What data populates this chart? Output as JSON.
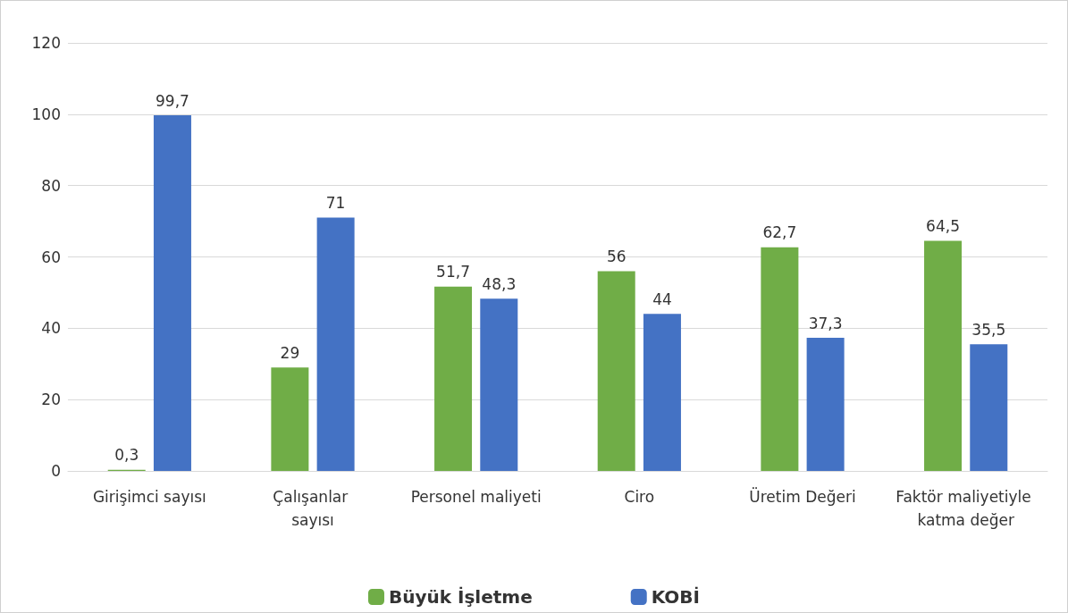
{
  "chart_data": {
    "type": "bar",
    "categories": [
      "Girişimci sayısı",
      "Çalışanlar sayısı",
      "Personel maliyeti",
      "Ciro",
      "Üretim Değeri",
      "Faktör maliyetiyle katma değer"
    ],
    "series": [
      {
        "name": "Büyük İşletme",
        "color": "#70ad47",
        "values": [
          0.3,
          29,
          51.7,
          56,
          62.7,
          64.5
        ],
        "value_labels": [
          "0,3",
          "29",
          "51,7",
          "56",
          "62,7",
          "64,5"
        ]
      },
      {
        "name": "KOBİ",
        "color": "#4472c4",
        "values": [
          99.7,
          71,
          48.3,
          44,
          37.3,
          35.5
        ],
        "value_labels": [
          "99,7",
          "71",
          "48,3",
          "44",
          "37,3",
          "35,5"
        ]
      }
    ],
    "ylim": [
      0,
      120
    ],
    "yticks": [
      0,
      20,
      40,
      60,
      80,
      100,
      120
    ],
    "grid": "y",
    "legend": "bottom"
  }
}
